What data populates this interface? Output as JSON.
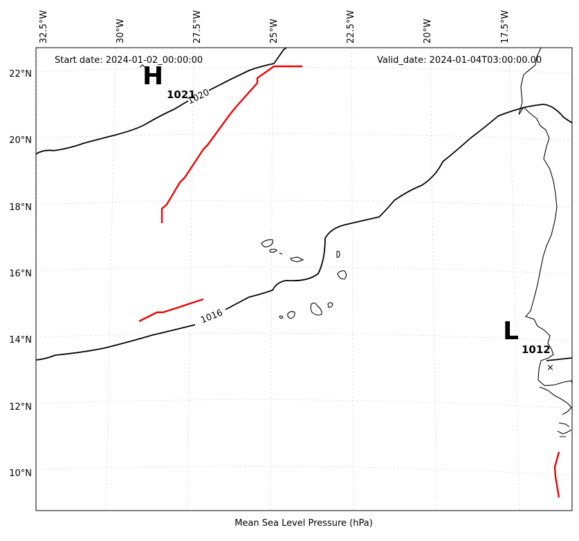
{
  "header": {
    "start_date": "Start date: 2024-01-02_00:00:00",
    "valid_date": "Valid_date: 2024-01-04T03:00:00.00"
  },
  "footer": {
    "caption": "Mean Sea Level Pressure (hPa)"
  },
  "axes": {
    "longitude_labels": [
      "32.5°W",
      "30°W",
      "27.5°W",
      "25°W",
      "22.5°W",
      "20°W",
      "17.5°W"
    ],
    "latitude_labels": [
      "22°N",
      "20°N",
      "18°N",
      "16°N",
      "14°N",
      "12°N",
      "10°N"
    ]
  },
  "pressure_centers": {
    "high": {
      "letter": "H",
      "value": "1021"
    },
    "low": {
      "letter": "L",
      "value": "1012"
    }
  },
  "isobars": [
    {
      "label": "1020"
    },
    {
      "label": "1016"
    }
  ],
  "colors": {
    "isobar": "#000000",
    "front": "#ee0000",
    "coastline": "#000000",
    "gridline": "#d9d9d9"
  },
  "chart_data": {
    "type": "map",
    "projection": "conic",
    "grid": true,
    "lon_ticks": [
      -32.5,
      -30,
      -27.5,
      -25,
      -22.5,
      -20,
      -17.5
    ],
    "lat_ticks": [
      22,
      20,
      18,
      16,
      14,
      12,
      10
    ],
    "highs": [
      {
        "label": "H",
        "pressure_hPa": 1021
      }
    ],
    "lows": [
      {
        "label": "L",
        "pressure_hPa": 1012
      }
    ],
    "isobar_levels_hPa": [
      1020,
      1016
    ]
  }
}
